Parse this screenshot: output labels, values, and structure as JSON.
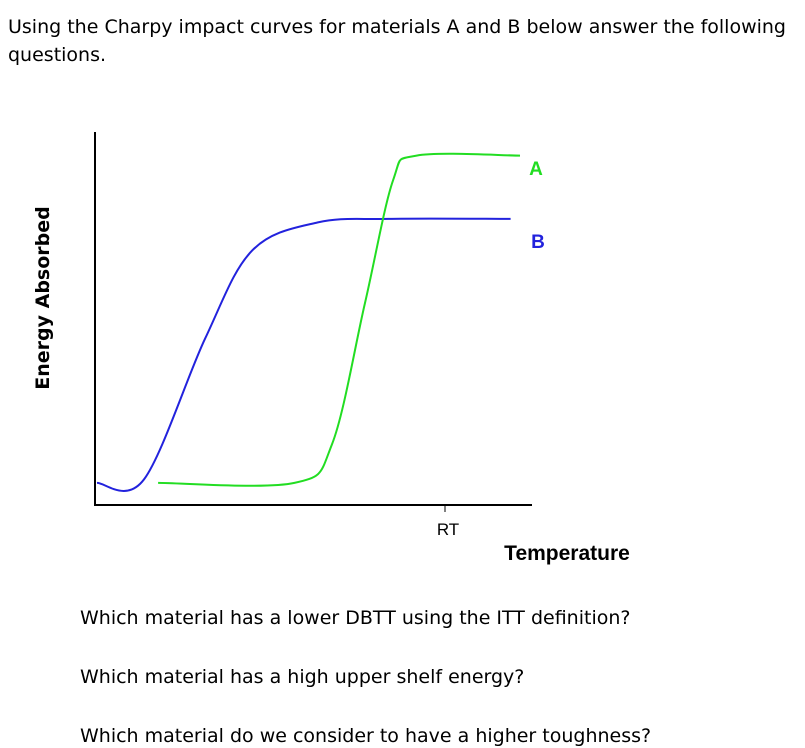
{
  "intro": "Using the Charpy impact curves for materials A and B below answer the following questions.",
  "questions": [
    "Which material has a lower DBTT using the ITT definition?",
    "Which material has a high upper shelf energy?",
    "Which material do we consider to have a higher toughness?"
  ],
  "chart_data": {
    "type": "line",
    "xlabel": "Temperature",
    "ylabel": "Energy Absorbed",
    "x_ticks": [
      "RT"
    ],
    "grid": false,
    "series": [
      {
        "name": "A",
        "color": "#22dd22",
        "points": [
          [
            0.13,
            0.04
          ],
          [
            0.42,
            0.04
          ],
          [
            0.5,
            0.15
          ],
          [
            0.57,
            0.55
          ],
          [
            0.63,
            0.9
          ],
          [
            0.68,
            0.97
          ],
          [
            0.9,
            0.97
          ]
        ]
      },
      {
        "name": "B",
        "color": "#2222dd",
        "points": [
          [
            0.0,
            0.04
          ],
          [
            0.1,
            0.05
          ],
          [
            0.23,
            0.45
          ],
          [
            0.33,
            0.7
          ],
          [
            0.47,
            0.78
          ],
          [
            0.62,
            0.79
          ],
          [
            0.88,
            0.79
          ]
        ]
      }
    ]
  }
}
